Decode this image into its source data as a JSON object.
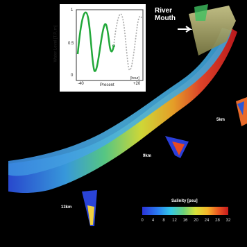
{
  "figure": {
    "river_mouth_label": "River\nMouth",
    "distance_labels": [
      "5km",
      "9km",
      "13km"
    ]
  },
  "inset": {
    "ylabel": "Water Level [T.P. m]",
    "y_ticks": [
      "1",
      "0.5",
      "0"
    ],
    "x_ticks": [
      "-40",
      "Present",
      "+20"
    ],
    "x_unit": "[hour]",
    "colors": {
      "past": "#22a83a",
      "future": "#bbbbbb"
    }
  },
  "legend": {
    "title": "Salinity [psu]",
    "ticks": [
      "0",
      "4",
      "8",
      "12",
      "16",
      "20",
      "24",
      "28",
      "32"
    ],
    "colors": [
      "#2a33d8",
      "#2a7cf0",
      "#33c8e8",
      "#6bd07a",
      "#d8e23a",
      "#f5b52a",
      "#ec5a22",
      "#c7191c"
    ]
  }
}
